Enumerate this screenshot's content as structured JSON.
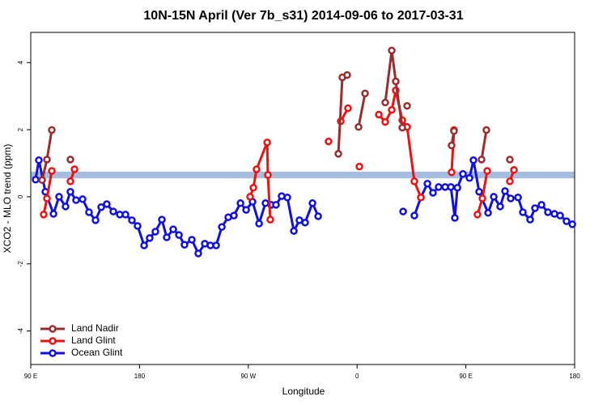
{
  "chart_data": {
    "type": "line",
    "title": "10N-15N April (Ver 7b_s31)   2014-09-06 to 2017-03-31",
    "x_label": "Longitude",
    "y_label": "XCO2 - MLO trend (ppm)",
    "xlim": [
      90,
      540
    ],
    "ylim": [
      -5,
      4.9
    ],
    "xticks": [
      {
        "value": 90,
        "label": "90 E"
      },
      180,
      {
        "value": 270,
        "label": "90 W"
      },
      {
        "value": 360,
        "label": "0"
      },
      {
        "value": 450,
        "label": "90 E"
      },
      {
        "value": 540,
        "label": "180"
      }
    ],
    "yticks": [
      -4,
      -2,
      0,
      2,
      4
    ],
    "band": [
      0.55,
      0.75
    ],
    "band_color": "#a6bde0",
    "legend": "bottom-left",
    "series": [
      {
        "name": "Land Nadir",
        "color": "#9b2d2d",
        "x": [
          99.4,
          103.4,
          107.4,
          null,
          122.8,
          null,
          344.5,
          347.8,
          351.8,
          null,
          361.2,
          366.6,
          null,
          383.3,
          388.7,
          392.0,
          397.4,
          null,
          401.4,
          null,
          438.2,
          440.2,
          null,
          463.0,
          467.0,
          null,
          486.4
        ],
        "values": [
          0.5,
          1.11,
          1.99,
          null,
          1.11,
          null,
          1.28,
          3.56,
          3.63,
          null,
          2.08,
          3.08,
          null,
          2.81,
          4.36,
          3.44,
          2.06,
          null,
          2.71,
          null,
          1.53,
          1.96,
          null,
          1.11,
          1.99,
          null,
          1.11
        ]
      },
      {
        "name": "Land Glint",
        "color": "#ee1111",
        "x": [
          100.7,
          103.4,
          107.4,
          null,
          122.8,
          126.2,
          null,
          271.5,
          274.2,
          276.8,
          285.6,
          286.2,
          288.2,
          null,
          336.4,
          null,
          346.5,
          352.5,
          null,
          361.9,
          null,
          378.0,
          383.3,
          388.7,
          392.0,
          397.4,
          401.4,
          407.4,
          412.8,
          null,
          438.2,
          440.2,
          null,
          459.6,
          463.7,
          467.7,
          null,
          486.4,
          489.8
        ],
        "values": [
          -0.53,
          -0.05,
          0.77,
          null,
          0.46,
          0.82,
          null,
          0,
          0.27,
          0.82,
          1.62,
          0.65,
          -0.68,
          null,
          1.65,
          null,
          2.25,
          2.64,
          null,
          0.9,
          null,
          2.45,
          2.23,
          2.59,
          3.17,
          2.28,
          2.08,
          0.46,
          -0.02,
          null,
          0.73,
          1.99,
          null,
          -0.53,
          -0.05,
          0.77,
          null,
          0.46,
          0.8
        ]
      },
      {
        "name": "Ocean Glint",
        "color": "#1010e0",
        "x": [
          94.0,
          96.7,
          102.1,
          108.8,
          113.4,
          118.8,
          122.8,
          127.5,
          132.9,
          138.2,
          143.6,
          148.3,
          152.9,
          158.3,
          163.7,
          168.4,
          173.7,
          178.4,
          183.8,
          188.4,
          193.1,
          198.5,
          202.5,
          207.9,
          212.6,
          217.2,
          223.3,
          228.6,
          234.0,
          238.7,
          243.4,
          248.1,
          253.4,
          258.1,
          263.5,
          268.2,
          273.5,
          278.9,
          284.2,
          288.9,
          292.9,
          297.6,
          302.3,
          307.7,
          312.3,
          317.0,
          323.1,
          327.8,
          null,
          398.1,
          null,
          407.4,
          412.8,
          418.2,
          422.8,
          427.5,
          432.9,
          437.6,
          440.9,
          443.0,
          447.6,
          453.0,
          456.3,
          461.0,
          468.4,
          473.1,
          478.4,
          482.4,
          487.1,
          493.2,
          497.2,
          503.2,
          507.2,
          512.6,
          517.9,
          523.3,
          528.0,
          533.3,
          538.1
        ],
        "values": [
          0.51,
          1.09,
          0.15,
          -0.51,
          0,
          -0.29,
          0.15,
          -0.1,
          -0.07,
          -0.46,
          -0.7,
          -0.31,
          -0.22,
          -0.44,
          -0.53,
          -0.53,
          -0.7,
          -0.87,
          -1.45,
          -1.23,
          -1.04,
          -0.68,
          -1.21,
          -0.97,
          -1.14,
          -1.43,
          -1.28,
          -1.69,
          -1.4,
          -1.45,
          -1.45,
          -0.9,
          -0.61,
          -0.56,
          -0.19,
          -0.39,
          -0.15,
          -0.8,
          -0.19,
          -0.24,
          -0.24,
          0.02,
          -0.02,
          -1.02,
          -0.7,
          -0.77,
          -0.19,
          -0.58,
          null,
          -0.44,
          null,
          -0.56,
          -0.02,
          0.39,
          0.12,
          0.29,
          0.29,
          0.29,
          -0.63,
          0.27,
          0.68,
          0.56,
          1.09,
          0.15,
          -0.48,
          0,
          -0.29,
          0.17,
          -0.05,
          -0.02,
          -0.46,
          -0.68,
          -0.34,
          -0.24,
          -0.46,
          -0.51,
          -0.56,
          -0.73,
          -0.82
        ]
      }
    ]
  }
}
